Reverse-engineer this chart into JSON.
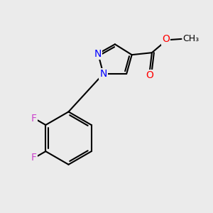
{
  "bg_color": "#ebebeb",
  "bond_color": "#000000",
  "N_color": "#0000ff",
  "O_color": "#ff0000",
  "F_color": "#cc44cc",
  "line_width": 1.5,
  "figsize": [
    3.0,
    3.0
  ],
  "dpi": 100,
  "xlim": [
    0,
    10
  ],
  "ylim": [
    0,
    10
  ]
}
